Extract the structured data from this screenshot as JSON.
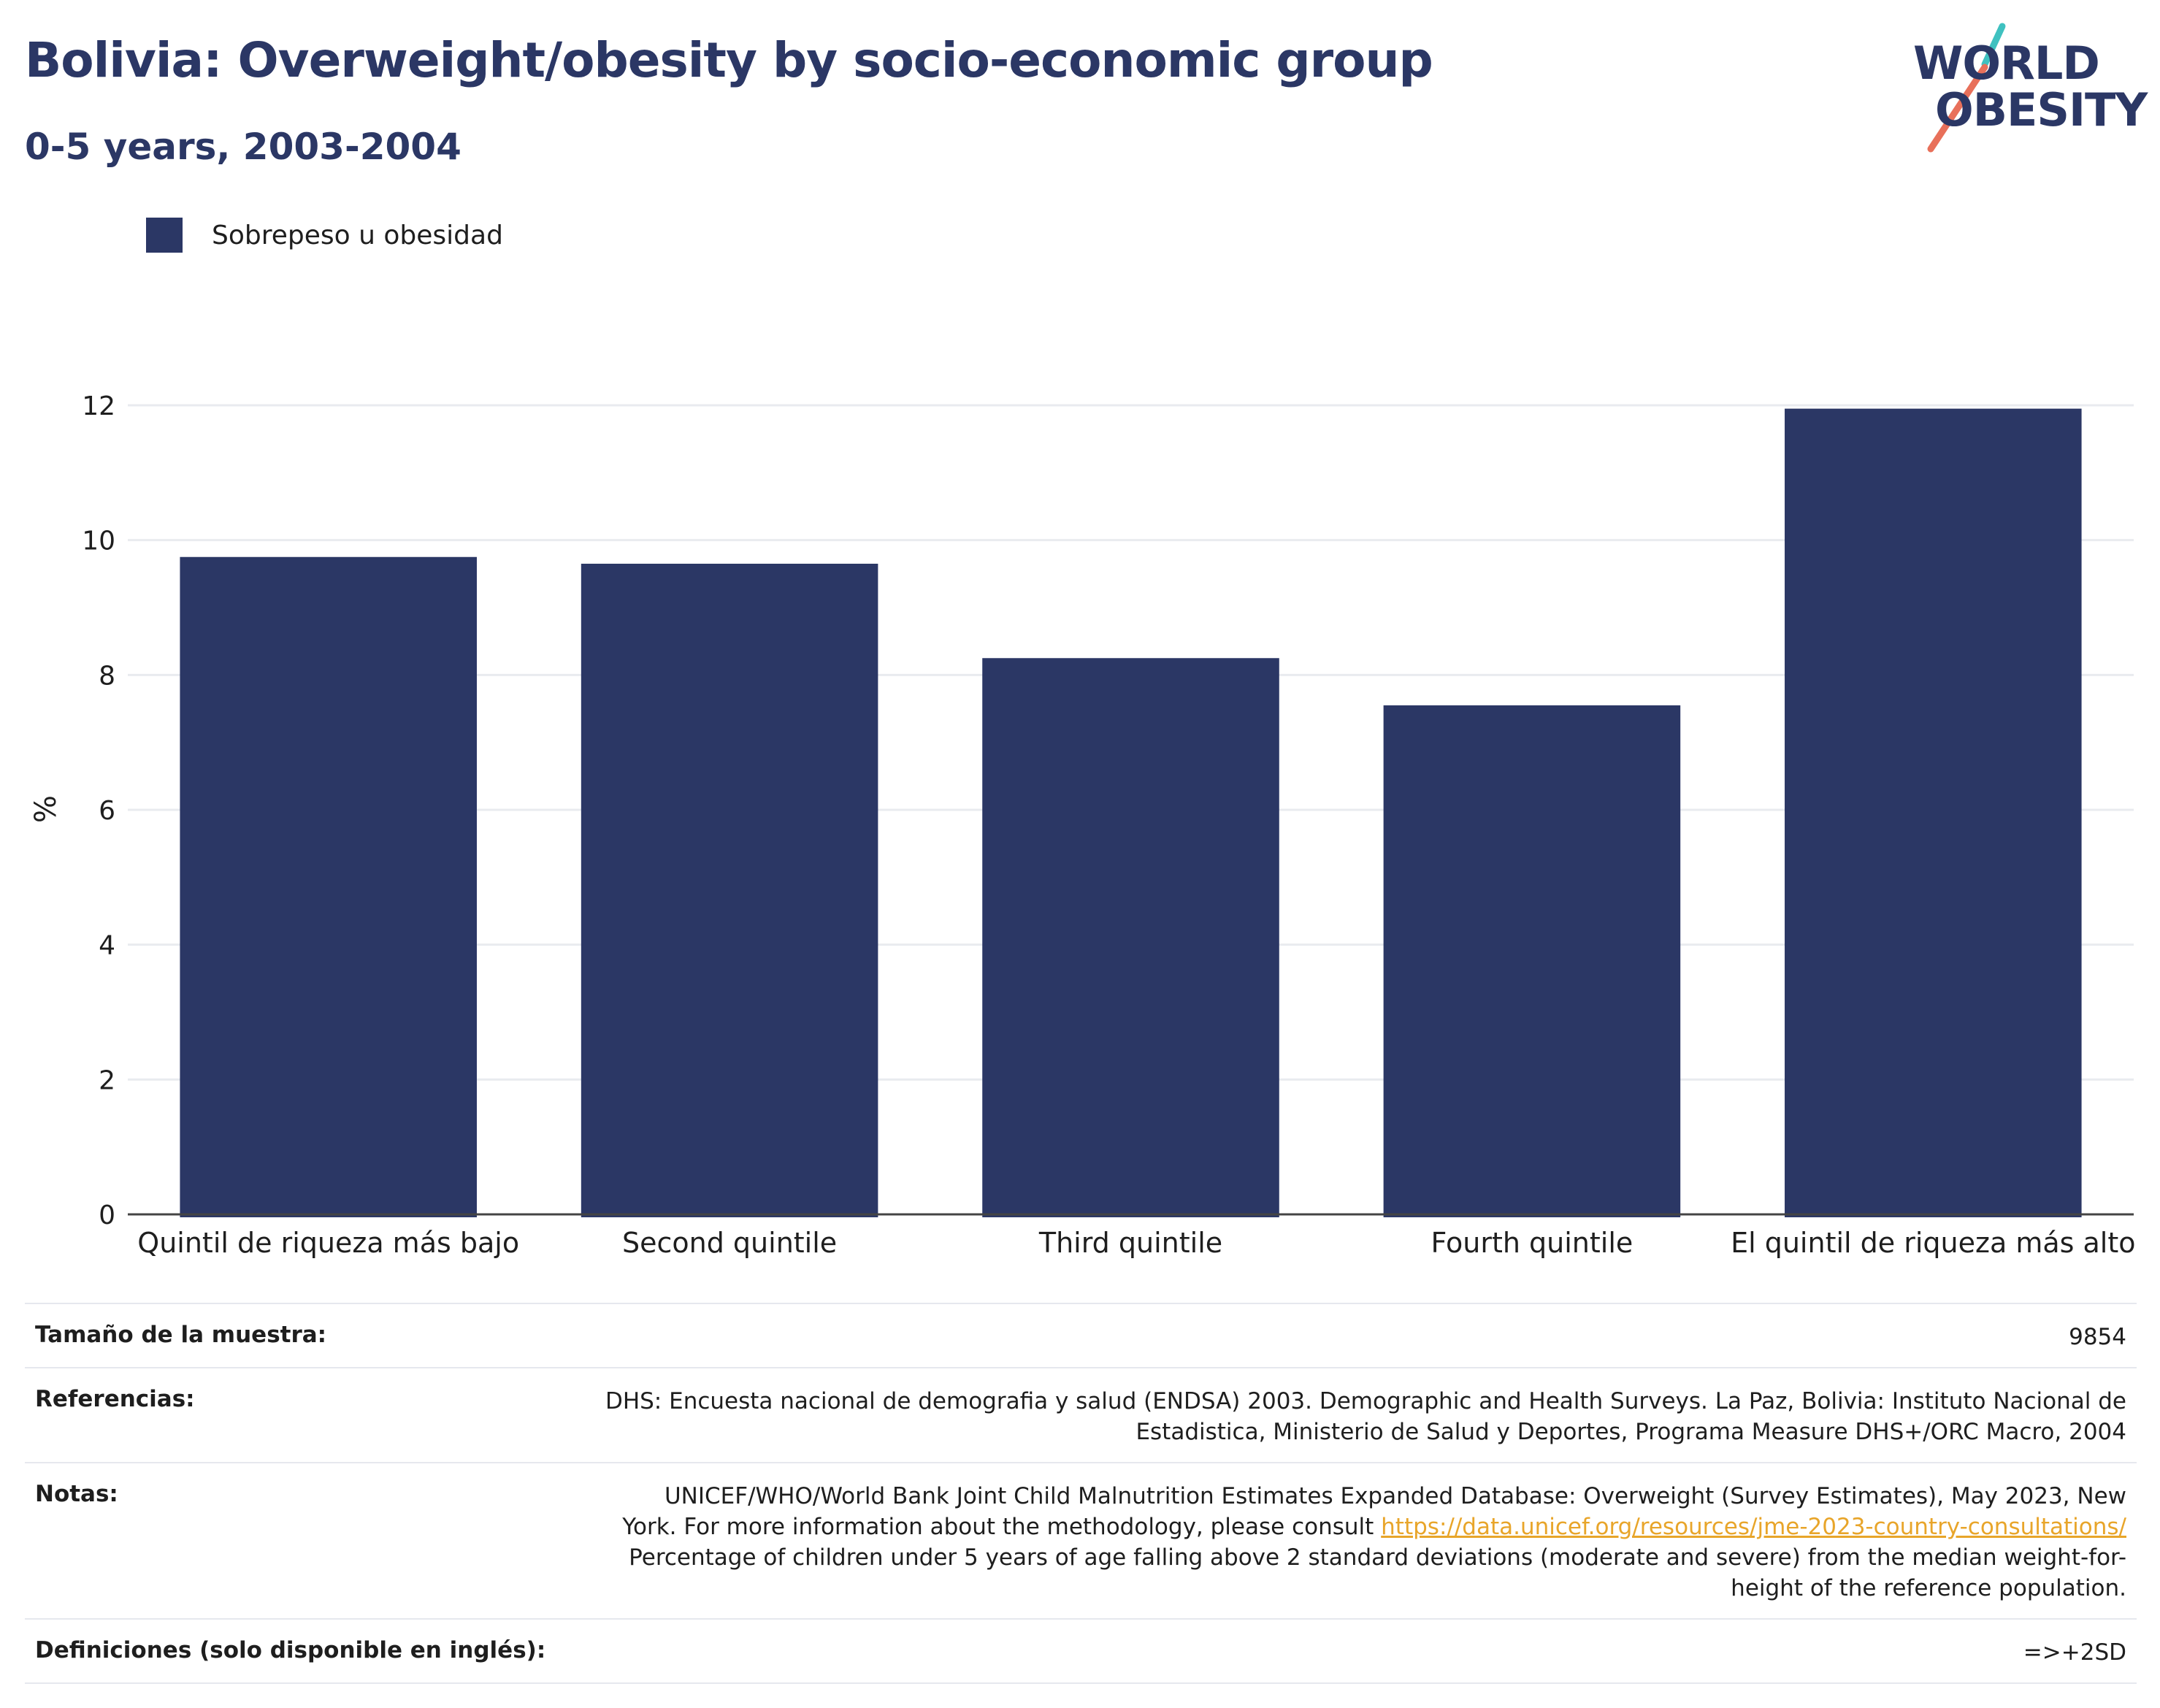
{
  "header": {
    "title": "Bolivia: Overweight/obesity by socio-economic group",
    "subtitle": "0-5 years, 2003-2004"
  },
  "logo": {
    "line1": "WORLD",
    "line2": "OBESITY",
    "colors": {
      "text": "#2b3765",
      "slash_top": "#3fc1c0",
      "slash_bottom": "#e8705a"
    }
  },
  "legend": {
    "label": "Sobrepeso u obesidad",
    "color": "#2b3765"
  },
  "chart_data": {
    "type": "bar",
    "categories": [
      "Quintil de riqueza más bajo",
      "Second quintile",
      "Third quintile",
      "Fourth quintile",
      "El quintil de riqueza más alto"
    ],
    "series": [
      {
        "name": "Sobrepeso u obesidad",
        "values": [
          9.75,
          9.65,
          8.25,
          7.55,
          11.95
        ],
        "color": "#2b3765"
      }
    ],
    "ylabel": "%",
    "xlabel": "",
    "ylim": [
      0,
      12
    ],
    "yticks": [
      0,
      2,
      4,
      6,
      8,
      10,
      12
    ],
    "grid": true,
    "legend_position": "top-left"
  },
  "meta": {
    "sample_label": "Tamaño de la muestra:",
    "sample_value": "9854",
    "references_label": "Referencias:",
    "references_line1": "DHS: Encuesta nacional de demografia y salud (ENDSA) 2003. Demographic and Health Surveys. La Paz, Bolivia: Instituto Nacional de",
    "references_line2": "Estadistica, Ministerio de Salud y Deportes, Programa Measure DHS+/ORC Macro, 2004",
    "notes_label": "Notas:",
    "notes_line1": "UNICEF/WHO/World Bank Joint Child Malnutrition Estimates Expanded Database: Overweight (Survey Estimates), May 2023, New",
    "notes_line2_prefix": "York. For more information about the methodology, please consult",
    "notes_link": "https://data.unicef.org/resources/jme-2023-country-consultations/",
    "notes_line3": "Percentage of children under 5 years of age falling above 2 standard deviations (moderate and severe) from the median weight-for-",
    "notes_line4": "height of the reference population.",
    "definitions_label": "Definiciones (solo disponible en inglés):",
    "definitions_value": "=>+2SD"
  }
}
